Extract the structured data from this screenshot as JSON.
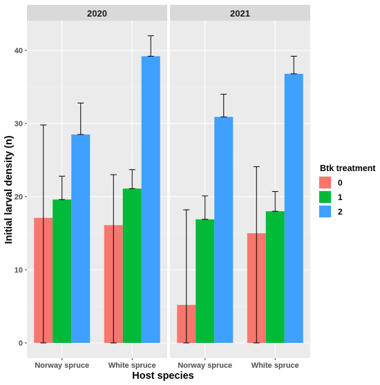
{
  "chart_data": {
    "type": "bar",
    "facets": [
      "2020",
      "2021"
    ],
    "categories": [
      "Norway spruce",
      "White spruce"
    ],
    "xlabel": "Host species",
    "ylabel": "Initial larval density (n)",
    "ylim": [
      0,
      45
    ],
    "yticks": [
      0,
      10,
      20,
      30,
      40
    ],
    "grid": true,
    "legend": {
      "title": "Btk treatment",
      "position": "right",
      "entries": [
        "0",
        "1",
        "2"
      ]
    },
    "colors": {
      "0": "#F8766D",
      "1": "#00BA38",
      "2": "#3FA0FF"
    },
    "series": [
      {
        "name": "0",
        "facet": "2020",
        "values": [
          17.1,
          16.1
        ],
        "err_low": [
          0,
          0
        ],
        "err_high": [
          29.8,
          23.0
        ]
      },
      {
        "name": "1",
        "facet": "2020",
        "values": [
          19.6,
          21.1
        ],
        "err_low": [
          19.6,
          21.1
        ],
        "err_high": [
          22.8,
          23.7
        ]
      },
      {
        "name": "2",
        "facet": "2020",
        "values": [
          28.5,
          39.2
        ],
        "err_low": [
          28.5,
          39.2
        ],
        "err_high": [
          32.8,
          42.0
        ]
      },
      {
        "name": "0",
        "facet": "2021",
        "values": [
          5.2,
          15.0
        ],
        "err_low": [
          0,
          0
        ],
        "err_high": [
          18.2,
          24.1
        ]
      },
      {
        "name": "1",
        "facet": "2021",
        "values": [
          16.9,
          18.0
        ],
        "err_low": [
          16.9,
          18.0
        ],
        "err_high": [
          20.1,
          20.7
        ]
      },
      {
        "name": "2",
        "facet": "2021",
        "values": [
          30.9,
          36.8
        ],
        "err_low": [
          30.9,
          36.8
        ],
        "err_high": [
          34.0,
          39.2
        ]
      }
    ]
  }
}
